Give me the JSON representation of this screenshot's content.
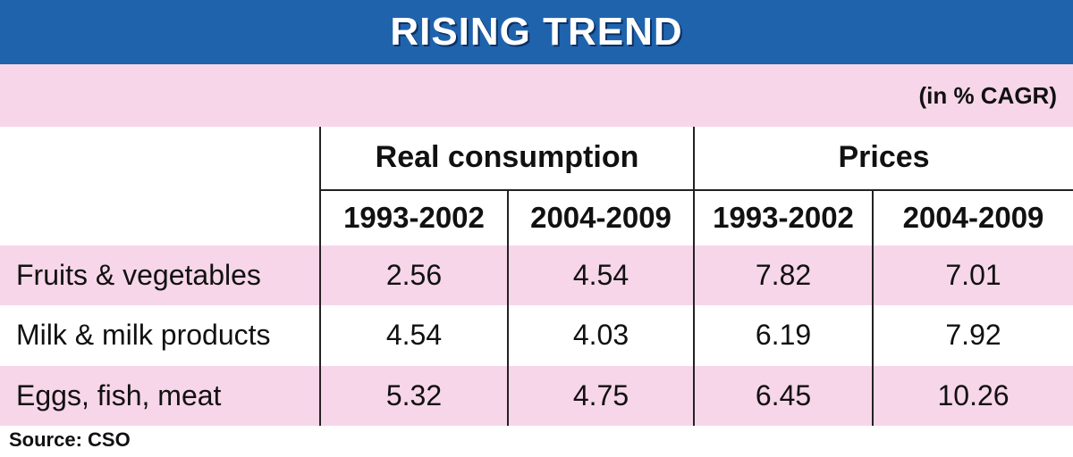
{
  "title": "RISING TREND",
  "unit_note": "(in % CAGR)",
  "source": "Source: CSO",
  "colors": {
    "banner": "#1f63ad",
    "band": "#f7d6e9"
  },
  "chart_data": {
    "type": "table",
    "column_groups": [
      {
        "label": "Real consumption",
        "periods": [
          "1993-2002",
          "2004-2009"
        ]
      },
      {
        "label": "Prices",
        "periods": [
          "1993-2002",
          "2004-2009"
        ]
      }
    ],
    "rows": [
      {
        "label": "Fruits & vegetables",
        "values": [
          "2.56",
          "4.54",
          "7.82",
          "7.01"
        ]
      },
      {
        "label": "Milk & milk products",
        "values": [
          "4.54",
          "4.03",
          "6.19",
          "7.92"
        ]
      },
      {
        "label": "Eggs, fish, meat",
        "values": [
          "5.32",
          "4.75",
          "6.45",
          "10.26"
        ]
      }
    ]
  }
}
